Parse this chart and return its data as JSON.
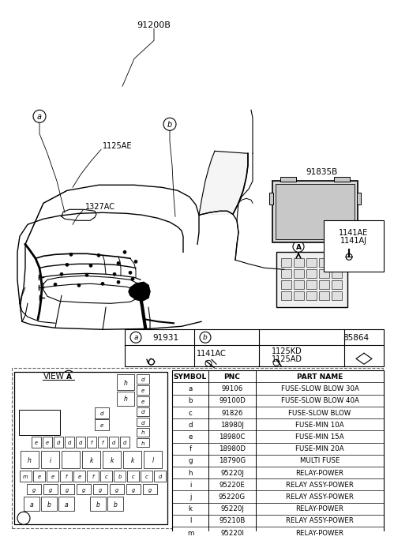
{
  "bg_color": "#ffffff",
  "table_data": {
    "headers": [
      "SYMBOL",
      "PNC",
      "PART NAME"
    ],
    "rows": [
      [
        "a",
        "99106",
        "FUSE-SLOW BLOW 30A"
      ],
      [
        "b",
        "99100D",
        "FUSE-SLOW BLOW 40A"
      ],
      [
        "c",
        "91826",
        "FUSE-SLOW BLOW"
      ],
      [
        "d",
        "18980J",
        "FUSE-MIN 10A"
      ],
      [
        "e",
        "18980C",
        "FUSE-MIN 15A"
      ],
      [
        "f",
        "18980D",
        "FUSE-MIN 20A"
      ],
      [
        "g",
        "18790G",
        "MULTI FUSE"
      ],
      [
        "h",
        "95220J",
        "RELAY-POWER"
      ],
      [
        "i",
        "95220E",
        "RELAY ASSY-POWER"
      ],
      [
        "j",
        "95220G",
        "RELAY ASSY-POWER"
      ],
      [
        "k",
        "95220J",
        "RELAY-POWER"
      ],
      [
        "l",
        "95210B",
        "RELAY ASSY-POWER"
      ],
      [
        "m",
        "95220I",
        "RELAY-POWER"
      ]
    ]
  },
  "main_label": "91200B",
  "label_a": "a",
  "label_b": "b",
  "label_1125AE": "1125AE",
  "label_1327AC": "1327AC",
  "label_91835B": "91835B",
  "label_A": "A",
  "label_1141AE": "1141AE",
  "label_1141AJ": "1141AJ",
  "label_91931": "91931",
  "label_1141AC": "1141AC",
  "label_1125KD": "1125KD",
  "label_1125AD": "1125AD",
  "label_85864": "85864",
  "view_label": "VIEW"
}
